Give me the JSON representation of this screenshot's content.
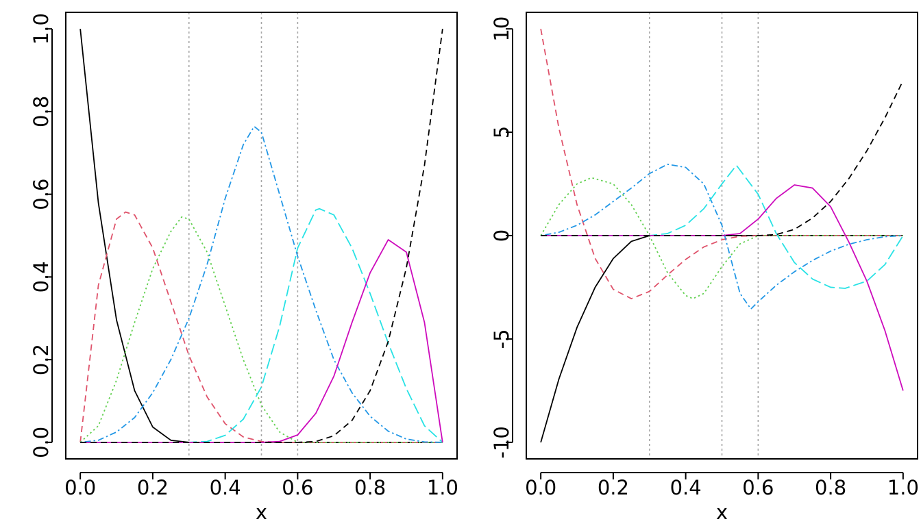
{
  "chart_data": [
    {
      "type": "line",
      "title": "",
      "xlabel": "x",
      "ylabel": "",
      "xlim": [
        -0.04,
        1.04
      ],
      "ylim": [
        -0.04,
        1.04
      ],
      "xticks": [
        0.0,
        0.2,
        0.4,
        0.6,
        0.8,
        1.0
      ],
      "xtick_labels": [
        "0.0",
        "0.2",
        "0.4",
        "0.6",
        "0.8",
        "1.0"
      ],
      "yticks": [
        0.0,
        0.2,
        0.4,
        0.6,
        0.8,
        1.0
      ],
      "ytick_labels": [
        "0.0",
        "0.2",
        "0.4",
        "0.6",
        "0.8",
        "1.0"
      ],
      "knots": [
        0.3,
        0.5,
        0.6
      ],
      "grid": false,
      "legend": "none",
      "series": [
        {
          "color": "#000000",
          "linestyle": "solid",
          "x": [
            0,
            0.05,
            0.1,
            0.15,
            0.2,
            0.25,
            0.3,
            0.4,
            0.5,
            0.6,
            0.7,
            0.8,
            0.9,
            1.0
          ],
          "values": [
            1.0,
            0.579,
            0.296,
            0.125,
            0.037,
            0.005,
            0,
            0,
            0,
            0,
            0,
            0,
            0,
            0
          ]
        },
        {
          "color": "#DF536B",
          "linestyle": "dashed",
          "x": [
            0,
            0.05,
            0.1,
            0.125,
            0.15,
            0.2,
            0.25,
            0.3,
            0.35,
            0.4,
            0.45,
            0.5,
            0.55,
            0.6,
            0.7,
            1.0
          ],
          "values": [
            0,
            0.38,
            0.54,
            0.557,
            0.55,
            0.47,
            0.34,
            0.21,
            0.11,
            0.045,
            0.013,
            0.002,
            0,
            0,
            0,
            0
          ]
        },
        {
          "color": "#61D04F",
          "linestyle": "dotted",
          "x": [
            0,
            0.05,
            0.1,
            0.15,
            0.2,
            0.25,
            0.28,
            0.3,
            0.35,
            0.4,
            0.45,
            0.5,
            0.55,
            0.6,
            0.7,
            1.0
          ],
          "values": [
            0,
            0.04,
            0.15,
            0.29,
            0.42,
            0.51,
            0.545,
            0.54,
            0.46,
            0.33,
            0.2,
            0.09,
            0.025,
            0,
            0,
            0
          ]
        },
        {
          "color": "#2297E6",
          "linestyle": "dotdash",
          "x": [
            0,
            0.05,
            0.1,
            0.15,
            0.2,
            0.25,
            0.3,
            0.35,
            0.4,
            0.45,
            0.48,
            0.5,
            0.55,
            0.6,
            0.65,
            0.7,
            0.75,
            0.8,
            0.85,
            0.9,
            0.95,
            1.0
          ],
          "values": [
            0,
            0.005,
            0.025,
            0.06,
            0.12,
            0.2,
            0.3,
            0.43,
            0.59,
            0.72,
            0.764,
            0.75,
            0.6,
            0.45,
            0.32,
            0.2,
            0.12,
            0.063,
            0.027,
            0.008,
            0.001,
            0
          ]
        },
        {
          "color": "#28E2E5",
          "linestyle": "longdash",
          "x": [
            0,
            0.3,
            0.35,
            0.4,
            0.45,
            0.5,
            0.55,
            0.6,
            0.65,
            0.66,
            0.7,
            0.75,
            0.8,
            0.85,
            0.9,
            0.95,
            1.0
          ],
          "values": [
            0,
            0,
            0.002,
            0.017,
            0.056,
            0.134,
            0.28,
            0.47,
            0.562,
            0.565,
            0.55,
            0.47,
            0.36,
            0.24,
            0.13,
            0.04,
            0
          ]
        },
        {
          "color": "#CD0BBC",
          "linestyle": "solid",
          "x": [
            0,
            0.5,
            0.55,
            0.6,
            0.65,
            0.7,
            0.75,
            0.8,
            0.85,
            0.9,
            0.95,
            1.0
          ],
          "values": [
            0,
            0,
            0.002,
            0.018,
            0.07,
            0.16,
            0.29,
            0.41,
            0.49,
            0.46,
            0.29,
            0
          ]
        },
        {
          "color": "#000000",
          "linestyle": "dashed",
          "x": [
            0,
            0.6,
            0.65,
            0.7,
            0.75,
            0.8,
            0.85,
            0.9,
            0.95,
            1.0
          ],
          "values": [
            0,
            0,
            0.002,
            0.016,
            0.053,
            0.125,
            0.244,
            0.422,
            0.67,
            1.0
          ]
        }
      ]
    },
    {
      "type": "line",
      "title": "",
      "xlabel": "x",
      "ylabel": "",
      "xlim": [
        -0.04,
        1.04
      ],
      "ylim": [
        -10.8,
        10.8
      ],
      "xticks": [
        0.0,
        0.2,
        0.4,
        0.6,
        0.8,
        1.0
      ],
      "xtick_labels": [
        "0.0",
        "0.2",
        "0.4",
        "0.6",
        "0.8",
        "1.0"
      ],
      "yticks": [
        -10,
        -5,
        0,
        5,
        10
      ],
      "ytick_labels": [
        "-10",
        "-5",
        "0",
        "5",
        "10"
      ],
      "knots": [
        0.3,
        0.5,
        0.6
      ],
      "grid": false,
      "legend": "none",
      "series": [
        {
          "color": "#000000",
          "linestyle": "solid",
          "x": [
            0,
            0.05,
            0.1,
            0.15,
            0.2,
            0.25,
            0.3,
            0.4,
            0.5,
            0.6,
            0.7,
            0.8,
            0.9,
            1.0
          ],
          "values": [
            -10,
            -6.94,
            -4.44,
            -2.5,
            -1.11,
            -0.28,
            0,
            0,
            0,
            0,
            0,
            0,
            0,
            0
          ]
        },
        {
          "color": "#DF536B",
          "linestyle": "dashed",
          "x": [
            0,
            0.05,
            0.1,
            0.15,
            0.2,
            0.25,
            0.3,
            0.35,
            0.4,
            0.45,
            0.5,
            0.55,
            0.6,
            0.8,
            1.0
          ],
          "values": [
            10,
            5.2,
            1.5,
            -1.1,
            -2.6,
            -3.05,
            -2.7,
            -1.9,
            -1.15,
            -0.55,
            -0.2,
            -0.03,
            0,
            0,
            0
          ]
        },
        {
          "color": "#61D04F",
          "linestyle": "dotted",
          "x": [
            0,
            0.05,
            0.1,
            0.14,
            0.2,
            0.25,
            0.3,
            0.35,
            0.4,
            0.42,
            0.45,
            0.5,
            0.55,
            0.6,
            0.8,
            1.0
          ],
          "values": [
            0,
            1.5,
            2.5,
            2.8,
            2.5,
            1.5,
            0,
            -1.8,
            -2.9,
            -3.05,
            -2.8,
            -1.5,
            -0.4,
            0,
            0,
            0
          ]
        },
        {
          "color": "#2297E6",
          "linestyle": "dotdash",
          "x": [
            0,
            0.05,
            0.1,
            0.15,
            0.2,
            0.25,
            0.3,
            0.35,
            0.4,
            0.45,
            0.5,
            0.55,
            0.58,
            0.6,
            0.65,
            0.7,
            0.75,
            0.8,
            0.85,
            0.9,
            0.95,
            1.0
          ],
          "values": [
            0,
            0.16,
            0.5,
            1.0,
            1.65,
            2.3,
            3.0,
            3.45,
            3.3,
            2.5,
            0.5,
            -2.8,
            -3.55,
            -3.2,
            -2.4,
            -1.75,
            -1.2,
            -0.75,
            -0.42,
            -0.2,
            -0.05,
            0
          ]
        },
        {
          "color": "#28E2E5",
          "linestyle": "longdash",
          "x": [
            0,
            0.3,
            0.35,
            0.4,
            0.45,
            0.5,
            0.54,
            0.6,
            0.65,
            0.7,
            0.75,
            0.8,
            0.84,
            0.9,
            0.95,
            1.0
          ],
          "values": [
            0,
            0,
            0.1,
            0.5,
            1.3,
            2.5,
            3.4,
            2.0,
            0.1,
            -1.3,
            -2.1,
            -2.5,
            -2.55,
            -2.2,
            -1.4,
            0
          ]
        },
        {
          "color": "#CD0BBC",
          "linestyle": "solid",
          "x": [
            0,
            0.5,
            0.55,
            0.6,
            0.65,
            0.7,
            0.75,
            0.8,
            0.85,
            0.9,
            0.95,
            1.0
          ],
          "values": [
            0,
            0,
            0.1,
            0.8,
            1.8,
            2.45,
            2.3,
            1.4,
            -0.3,
            -2.2,
            -4.6,
            -7.5
          ]
        },
        {
          "color": "#000000",
          "linestyle": "dashed",
          "x": [
            0,
            0.6,
            0.65,
            0.7,
            0.75,
            0.8,
            0.85,
            0.9,
            0.95,
            1.0
          ],
          "values": [
            0,
            0,
            0.05,
            0.3,
            0.85,
            1.65,
            2.75,
            4.1,
            5.7,
            7.5
          ]
        }
      ]
    }
  ]
}
